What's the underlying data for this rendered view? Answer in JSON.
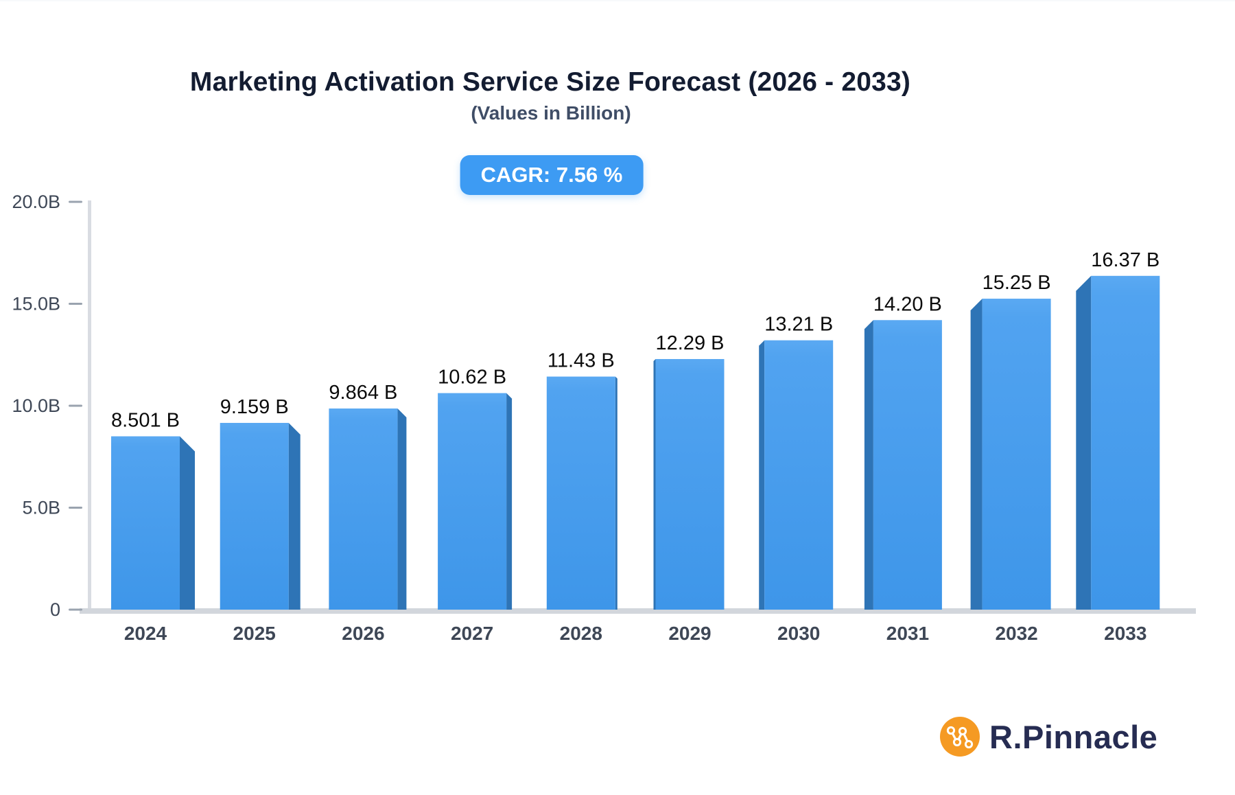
{
  "header": {
    "title": "Marketing Activation Service Size Forecast (2026 - 2033)",
    "subtitle": "(Values in Billion)",
    "cagr_badge": "CAGR: 7.56 %"
  },
  "chart_data": {
    "type": "bar",
    "title": "Marketing Activation Service Size Forecast (2026 - 2033)",
    "subtitle": "(Values in Billion)",
    "annotation": "CAGR: 7.56 %",
    "categories": [
      "2024",
      "2025",
      "2026",
      "2027",
      "2028",
      "2029",
      "2030",
      "2031",
      "2032",
      "2033"
    ],
    "values": [
      8.501,
      9.159,
      9.864,
      10.62,
      11.43,
      12.29,
      13.21,
      14.2,
      15.25,
      16.37
    ],
    "value_labels": [
      "8.501 B",
      "9.159 B",
      "9.864 B",
      "10.62 B",
      "11.43 B",
      "12.29 B",
      "13.21 B",
      "14.20 B",
      "15.25 B",
      "16.37 B"
    ],
    "xlabel": "",
    "ylabel": "",
    "ylim": [
      0,
      20
    ],
    "yticks": {
      "values": [
        0,
        5,
        10,
        15,
        20
      ],
      "labels": [
        "0",
        "5.0B",
        "10.0B",
        "15.0B",
        "20.0B"
      ]
    },
    "grid": false,
    "legend": false,
    "style": "3d-extruded-bars, perspective toward center",
    "colors": {
      "bar_face_top": "#57a7f1",
      "bar_face_bottom": "#3e96e9",
      "bar_side": "#2e74b6",
      "axis_line": "#d9dce2",
      "baseline": "#d2d6dc",
      "tick_dash": "#9aa3af",
      "tick_text": "#3e4756",
      "value_text": "#0b0b0b",
      "badge_bg": "#3d9bf3"
    }
  },
  "footer": {
    "brand": "R.Pinnacle",
    "logo_color": "#f59a23"
  }
}
